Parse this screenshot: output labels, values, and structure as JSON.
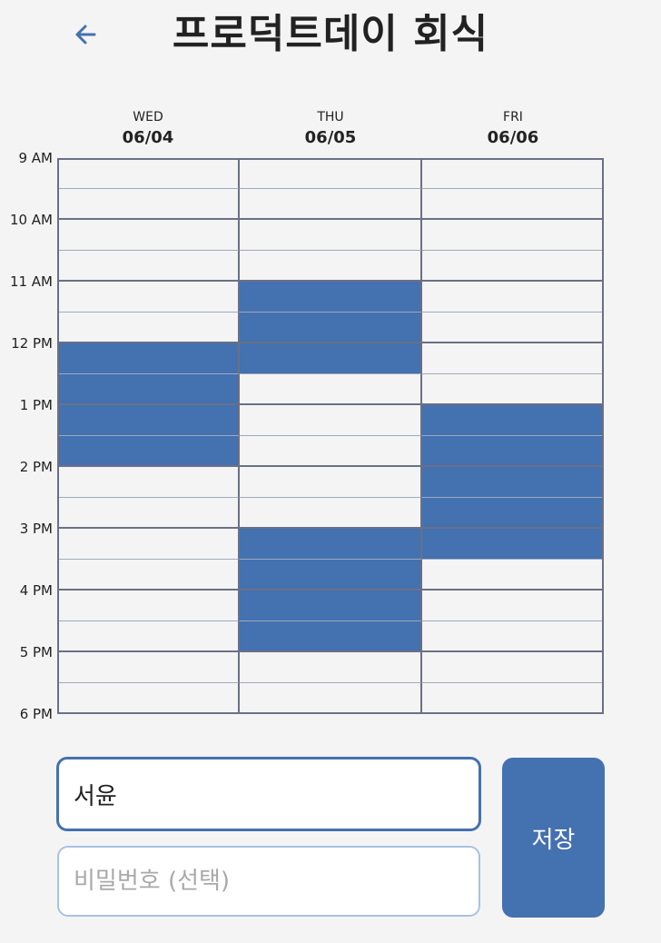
{
  "header": {
    "title": "프로덕트데이 회식",
    "back_icon": "arrow-left-icon"
  },
  "days": [
    {
      "dow": "WED",
      "date": "06/04"
    },
    {
      "dow": "THU",
      "date": "06/05"
    },
    {
      "dow": "FRI",
      "date": "06/06"
    }
  ],
  "time_labels": [
    "9 AM",
    "10 AM",
    "11 AM",
    "12 PM",
    "1 PM",
    "2 PM",
    "3 PM",
    "4 PM",
    "5 PM",
    "6 PM"
  ],
  "slots_per_day": 18,
  "selected_slots": [
    [
      6,
      7,
      8,
      9
    ],
    [
      4,
      5,
      6,
      12,
      13,
      14,
      15
    ],
    [
      8,
      9,
      10,
      11,
      12
    ]
  ],
  "colors": {
    "selected": "#4471b0",
    "empty": "#f4f4f4",
    "hour_line": "#6b7086",
    "half_line": "#9fa9bd",
    "accent": "#4471b0"
  },
  "form": {
    "name_value": "서윤",
    "password_placeholder": "비밀번호 (선택)",
    "save_label": "저장"
  }
}
